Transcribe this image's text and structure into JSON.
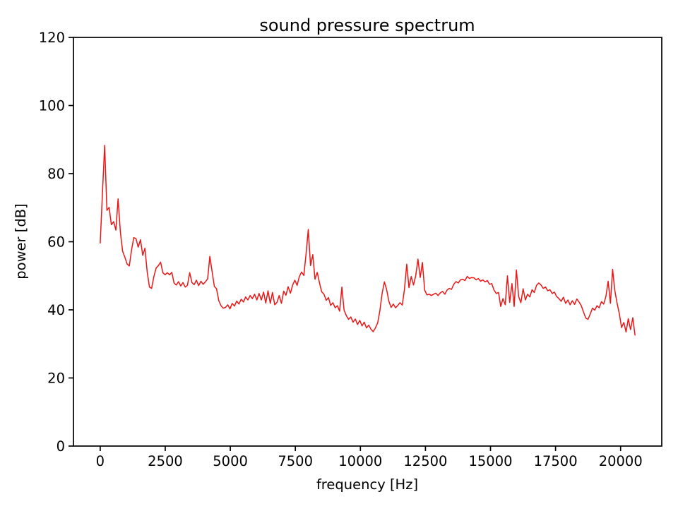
{
  "figure": {
    "background": "#ffffff",
    "spine_color": "#000000",
    "text_color": "#000000"
  },
  "chart_data": {
    "type": "line",
    "title": "sound pressure spectrum",
    "xlabel": "frequency [Hz]",
    "ylabel": "power [dB]",
    "line_color": "#ee1515",
    "grid": false,
    "legend": "none",
    "xlim": [
      -1028,
      21582
    ],
    "ylim": [
      0,
      120
    ],
    "x_ticks": [
      0,
      2500,
      5000,
      7500,
      10000,
      12500,
      15000,
      17500,
      20000
    ],
    "y_ticks": [
      0,
      20,
      40,
      60,
      80,
      100,
      120
    ],
    "x_start": 0,
    "x_step": 86,
    "values": [
      59.6,
      74.0,
      88.3,
      69.2,
      70.1,
      65.0,
      65.9,
      63.4,
      72.6,
      63.0,
      57.2,
      55.5,
      53.5,
      52.9,
      57.5,
      61.2,
      60.9,
      58.4,
      60.6,
      56.0,
      58.1,
      51.2,
      46.7,
      46.3,
      49.8,
      52.3,
      53.0,
      54.0,
      50.9,
      50.3,
      50.9,
      50.3,
      51.0,
      47.9,
      47.3,
      48.3,
      47.0,
      48.0,
      46.7,
      47.2,
      50.9,
      48.0,
      47.4,
      48.7,
      47.1,
      48.4,
      47.5,
      48.2,
      49.1,
      55.7,
      51.3,
      46.9,
      46.2,
      42.7,
      41.2,
      40.5,
      40.7,
      41.5,
      40.3,
      41.9,
      41.1,
      42.6,
      41.7,
      43.1,
      42.3,
      43.8,
      42.9,
      44.2,
      43.3,
      44.6,
      42.9,
      44.8,
      42.9,
      45.2,
      42.0,
      45.6,
      41.9,
      45.1,
      41.5,
      42.2,
      44.2,
      41.9,
      45.5,
      44.3,
      46.8,
      44.9,
      47.3,
      48.7,
      47.2,
      49.8,
      51.1,
      50.1,
      56.5,
      63.6,
      53.0,
      56.2,
      49.0,
      51.0,
      47.9,
      45.3,
      44.6,
      42.8,
      43.6,
      41.3,
      42.1,
      40.6,
      41.2,
      39.6,
      46.7,
      39.9,
      38.3,
      37.2,
      37.9,
      36.4,
      37.3,
      35.7,
      36.9,
      35.3,
      36.4,
      34.7,
      35.5,
      34.3,
      33.6,
      34.7,
      36.2,
      39.8,
      44.9,
      48.2,
      46.0,
      42.5,
      40.7,
      41.7,
      40.6,
      41.3,
      42.1,
      41.4,
      46.2,
      53.4,
      46.5,
      49.8,
      47.3,
      50.0,
      54.9,
      49.5,
      53.9,
      45.8,
      44.4,
      44.6,
      44.2,
      44.6,
      44.9,
      44.2,
      45.0,
      45.4,
      44.6,
      45.8,
      46.3,
      46.0,
      47.5,
      48.3,
      47.9,
      48.8,
      49.0,
      48.6,
      49.8,
      49.2,
      49.5,
      49.4,
      48.8,
      49.2,
      48.4,
      48.8,
      48.2,
      48.6,
      47.5,
      47.7,
      45.8,
      44.8,
      45.1,
      41.0,
      43.3,
      41.5,
      50.0,
      42.2,
      47.7,
      41.0,
      51.7,
      43.9,
      42.1,
      46.2,
      42.9,
      44.6,
      43.8,
      45.9,
      45.1,
      47.2,
      47.9,
      47.3,
      46.3,
      46.7,
      45.6,
      45.9,
      44.8,
      45.2,
      43.9,
      43.3,
      42.5,
      43.7,
      41.9,
      42.9,
      41.5,
      42.7,
      41.6,
      43.2,
      42.3,
      41.2,
      39.3,
      37.6,
      37.2,
      38.8,
      40.5,
      39.9,
      41.2,
      40.6,
      42.4,
      41.7,
      43.9,
      48.4,
      41.9,
      51.9,
      45.6,
      41.9,
      38.9,
      34.8,
      36.3,
      33.5,
      37.4,
      34.2,
      37.7,
      32.6
    ]
  }
}
